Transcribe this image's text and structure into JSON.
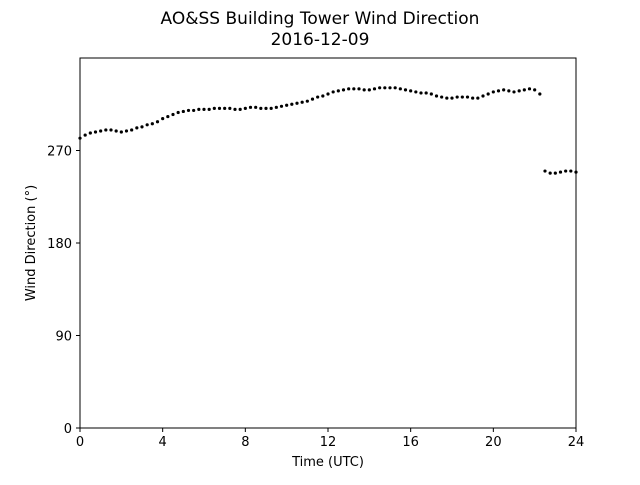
{
  "chart_data": {
    "type": "scatter",
    "title": "AO&SS Building Tower Wind Direction",
    "subtitle": "2016-12-09",
    "xlabel": "Time (UTC)",
    "ylabel": "Wind Direction (°)",
    "xlim": [
      0,
      24
    ],
    "ylim": [
      0,
      360
    ],
    "xticks": [
      0,
      4,
      8,
      12,
      16,
      20,
      24
    ],
    "yticks": [
      0,
      90,
      180,
      270
    ],
    "grid": false,
    "marker_color": "#000000",
    "series": [
      {
        "x": [
          0.0,
          0.25,
          0.5,
          0.75,
          1.0,
          1.25,
          1.5,
          1.75,
          2.0,
          2.25,
          2.5,
          2.75,
          3.0,
          3.25,
          3.5,
          3.75,
          4.0,
          4.25,
          4.5,
          4.75,
          5.0,
          5.25,
          5.5,
          5.75,
          6.0,
          6.25,
          6.5,
          6.75,
          7.0,
          7.25,
          7.5,
          7.75,
          8.0,
          8.25,
          8.5,
          8.75,
          9.0,
          9.25,
          9.5,
          9.75,
          10.0,
          10.25,
          10.5,
          10.75,
          11.0,
          11.25,
          11.5,
          11.75,
          12.0,
          12.25,
          12.5,
          12.75,
          13.0,
          13.25,
          13.5,
          13.75,
          14.0,
          14.25,
          14.5,
          14.75,
          15.0,
          15.25,
          15.5,
          15.75,
          16.0,
          16.25,
          16.5,
          16.75,
          17.0,
          17.25,
          17.5,
          17.75,
          18.0,
          18.25,
          18.5,
          18.75,
          19.0,
          19.25,
          19.5,
          19.75,
          20.0,
          20.25,
          20.5,
          20.75,
          21.0,
          21.25,
          21.5,
          21.75,
          22.0,
          22.25,
          22.5,
          22.75,
          23.0,
          23.25,
          23.5,
          23.75,
          24.0
        ],
        "y": [
          282,
          285,
          287,
          288,
          289,
          290,
          290,
          289,
          288,
          289,
          290,
          292,
          293,
          295,
          296,
          298,
          301,
          303,
          305,
          307,
          308,
          309,
          309,
          310,
          310,
          310,
          311,
          311,
          311,
          311,
          310,
          310,
          311,
          312,
          312,
          311,
          311,
          311,
          312,
          313,
          314,
          315,
          316,
          317,
          318,
          320,
          322,
          323,
          325,
          327,
          328,
          329,
          330,
          330,
          330,
          329,
          329,
          330,
          331,
          331,
          331,
          331,
          330,
          329,
          328,
          327,
          326,
          326,
          325,
          323,
          322,
          321,
          321,
          322,
          322,
          322,
          321,
          321,
          323,
          325,
          327,
          328,
          329,
          328,
          327,
          328,
          329,
          330,
          329,
          325,
          250,
          248,
          248,
          249,
          250,
          250,
          249
        ]
      }
    ]
  }
}
